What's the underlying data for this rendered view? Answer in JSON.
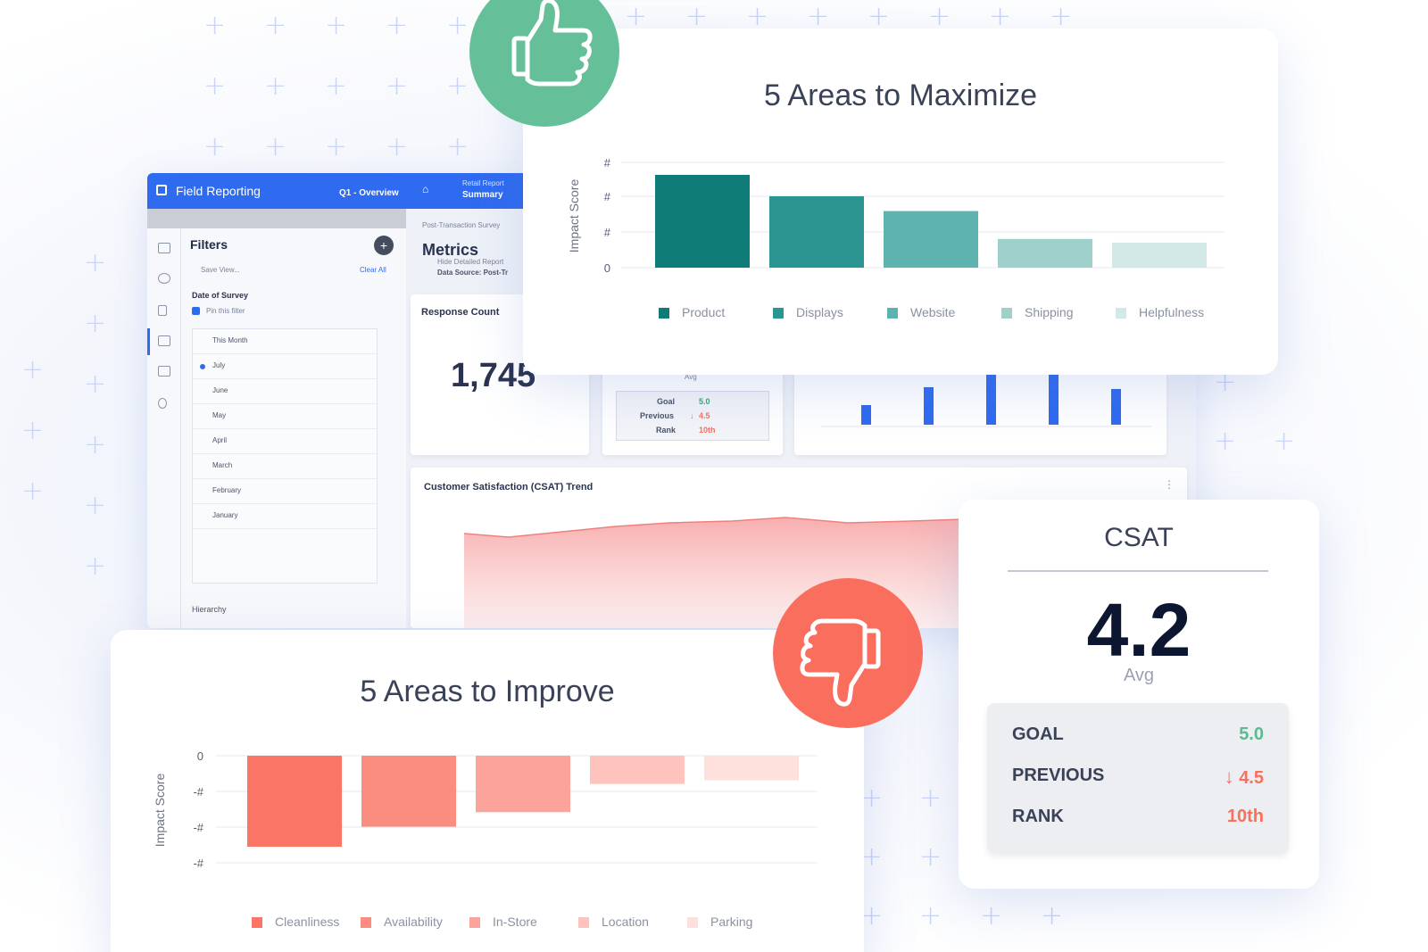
{
  "dashboard": {
    "app_title": "Field Reporting",
    "tab_overview": "Q1 - Overview",
    "tab_retail_top": "Retail Report",
    "tab_retail_bottom": "Summary",
    "filters_title": "Filters",
    "save_view": "Save View...",
    "clear_all": "Clear All",
    "date_filter_label": "Date of Survey",
    "pin_filter": "Pin this filter",
    "months": [
      "This Month",
      "July",
      "June",
      "May",
      "April",
      "March",
      "February",
      "January"
    ],
    "selected_month": "July",
    "hierarchy_label": "Hierarchy",
    "survey_name": "Post-Transaction Survey",
    "page_title": "Metrics",
    "detail_toggle": "Hide Detailed Report",
    "data_source": "Data Source: Post-Tr",
    "response_count_label": "Response Count",
    "response_count_value": "1,745",
    "avg_label": "Avg",
    "mini_goal_label": "Goal",
    "mini_goal_value": "5.0",
    "mini_prev_label": "Previous",
    "mini_prev_value": "4.5",
    "mini_rank_label": "Rank",
    "mini_rank_value": "10th",
    "csat_trend_title": "Customer Satisfaction (CSAT) Trend"
  },
  "maximize_chart": {
    "title": "5 Areas to Maximize",
    "ylabel": "Impact Score",
    "y_ticks": [
      "#",
      "#",
      "#",
      "0"
    ],
    "categories": [
      "Product",
      "Displays",
      "Website",
      "Shipping",
      "Helpfulness"
    ],
    "values": [
      100,
      77,
      61,
      31,
      27
    ],
    "colors": [
      "#0f7b76",
      "#2a9591",
      "#5fb3ae",
      "#9fd0cc",
      "#d3e9e7"
    ]
  },
  "improve_chart": {
    "title": "5 Areas to Improve",
    "ylabel": "Impact Score",
    "y_ticks": [
      "0",
      "-#",
      "-#",
      "-#"
    ],
    "categories": [
      "Cleanliness",
      "Availability",
      "In-Store",
      "Location",
      "Parking"
    ],
    "values": [
      -100,
      -78,
      -62,
      -31,
      -27
    ],
    "colors": [
      "#fb7566",
      "#fb8c80",
      "#fca49b",
      "#fdc3bc",
      "#fee0dc"
    ]
  },
  "csat_card": {
    "title": "CSAT",
    "score": "4.2",
    "score_label": "Avg",
    "goal_label": "GOAL",
    "goal_value": "5.0",
    "previous_label": "PREVIOUS",
    "previous_value": "4.5",
    "rank_label": "RANK",
    "rank_value": "10th"
  },
  "chart_data": [
    {
      "type": "bar",
      "title": "5 Areas to Maximize",
      "ylabel": "Impact Score",
      "categories": [
        "Product",
        "Displays",
        "Website",
        "Shipping",
        "Helpfulness"
      ],
      "values": [
        100,
        77,
        61,
        31,
        27
      ]
    },
    {
      "type": "bar",
      "title": "5 Areas to Improve",
      "ylabel": "Impact Score",
      "categories": [
        "Cleanliness",
        "Availability",
        "In-Store",
        "Location",
        "Parking"
      ],
      "values": [
        -100,
        -78,
        -62,
        -31,
        -27
      ]
    }
  ],
  "colors": {
    "accent": "#2f6bf0",
    "positive": "#5cba8e",
    "negative": "#fb6f5d",
    "thumbs_up_bg": "#65bf98",
    "thumbs_down_bg": "#fa6e5e"
  }
}
